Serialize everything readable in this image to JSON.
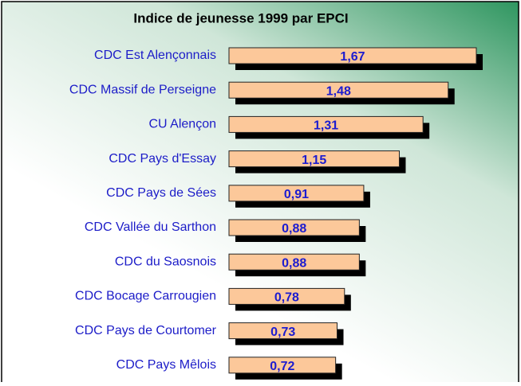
{
  "chart_data": {
    "type": "bar",
    "orientation": "horizontal",
    "title": "Indice de jeunesse 1999 par EPCI",
    "categories": [
      "CDC Est Alençonnais",
      "CDC Massif de Perseigne",
      "CU Alençon",
      "CDC Pays d'Essay",
      "CDC Pays de Sées",
      "CDC Vallée du Sarthon",
      "CDC du Saosnois",
      "CDC Bocage Carrougien",
      "CDC Pays de Courtomer",
      "CDC Pays Mêlois"
    ],
    "values": [
      1.67,
      1.48,
      1.31,
      1.15,
      0.91,
      0.88,
      0.88,
      0.78,
      0.73,
      0.72
    ],
    "value_labels": [
      "1,67",
      "1,48",
      "1,31",
      "1,15",
      "0,91",
      "0,88",
      "0,88",
      "0,78",
      "0,73",
      "0,72"
    ],
    "color": "#fcc89a"
  }
}
